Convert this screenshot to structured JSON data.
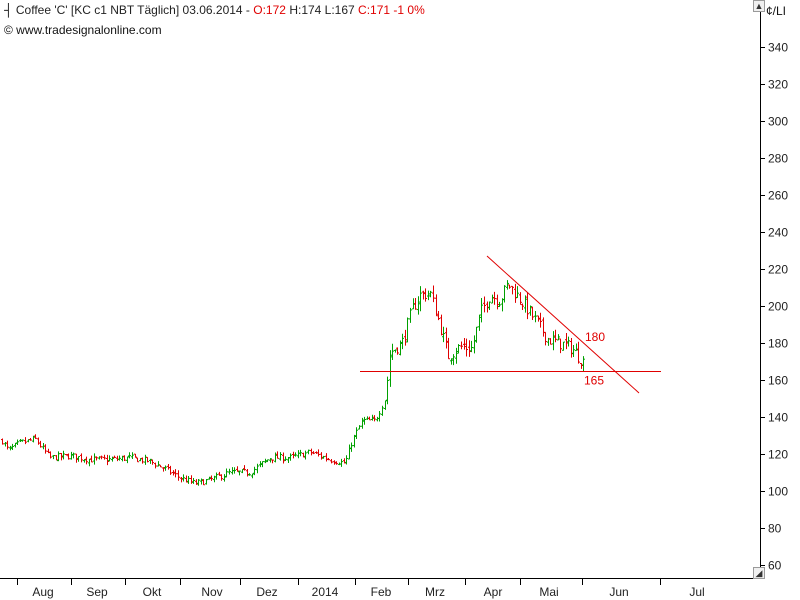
{
  "header": {
    "icon": "ohlc-bar-icon",
    "symbol_text": "Coffee 'C' [KC c1 NBT  Täglich]",
    "date_text": "03.06.2014 -",
    "open_text": "O:172",
    "hl_text": "H:174 L:167",
    "close_text": "C:171 -1 0%",
    "copyright": "© www.tradesignalonline.com",
    "unit": "¢/LI"
  },
  "colors": {
    "up": "#00a000",
    "down": "#e00000",
    "line": "#e00000",
    "axis": "#000000",
    "text": "#222222"
  },
  "chart_data": {
    "type": "ohlc",
    "yaxis_ticks": [
      60,
      80,
      100,
      120,
      140,
      160,
      180,
      200,
      220,
      240,
      260,
      280,
      300,
      320,
      340
    ],
    "ylim": [
      55,
      357
    ],
    "xaxis_labels": [
      "Aug",
      "Sep",
      "Okt",
      "Nov",
      "Dez",
      "2014",
      "Feb",
      "Mrz",
      "Apr",
      "Mai",
      "Jun",
      "Jul"
    ],
    "price_path": [
      [
        0,
        129
      ],
      [
        8,
        122
      ],
      [
        20,
        126
      ],
      [
        35,
        128
      ],
      [
        50,
        118
      ],
      [
        70,
        119
      ],
      [
        90,
        117
      ],
      [
        110,
        117
      ],
      [
        130,
        118
      ],
      [
        150,
        116
      ],
      [
        165,
        112
      ],
      [
        180,
        107
      ],
      [
        195,
        104
      ],
      [
        210,
        106
      ],
      [
        230,
        110
      ],
      [
        250,
        110
      ],
      [
        270,
        118
      ],
      [
        290,
        118
      ],
      [
        310,
        121
      ],
      [
        330,
        117
      ],
      [
        345,
        115
      ],
      [
        352,
        127
      ],
      [
        362,
        138
      ],
      [
        375,
        138
      ],
      [
        385,
        150
      ],
      [
        390,
        175
      ],
      [
        402,
        180
      ],
      [
        412,
        198
      ],
      [
        420,
        206
      ],
      [
        430,
        207
      ],
      [
        438,
        193
      ],
      [
        448,
        173
      ],
      [
        460,
        178
      ],
      [
        472,
        177
      ],
      [
        480,
        196
      ],
      [
        490,
        206
      ],
      [
        500,
        203
      ],
      [
        508,
        212
      ],
      [
        518,
        205
      ],
      [
        528,
        198
      ],
      [
        538,
        190
      ],
      [
        548,
        182
      ],
      [
        560,
        180
      ],
      [
        572,
        177
      ],
      [
        583,
        170
      ]
    ],
    "annotations": [
      {
        "type": "hline",
        "value": 165,
        "label": "165"
      },
      {
        "type": "trendline",
        "from_value": 227,
        "to_value": 153,
        "label": "180"
      }
    ]
  }
}
